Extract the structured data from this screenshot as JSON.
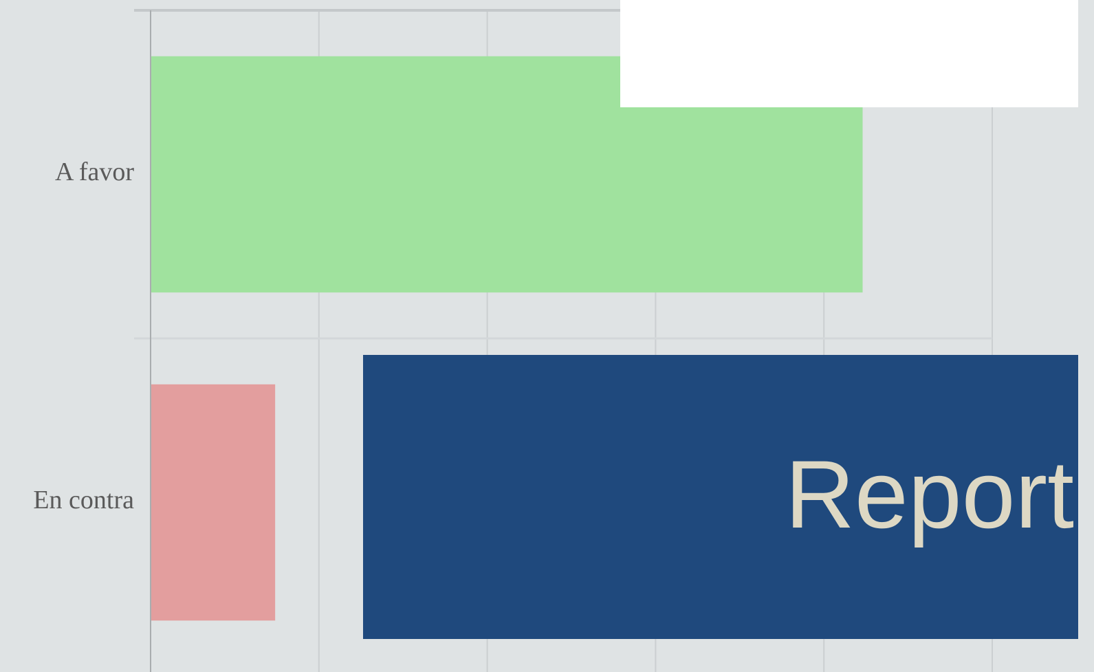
{
  "chart_data": {
    "type": "bar",
    "orientation": "horizontal",
    "categories": [
      "A favor",
      "En contra"
    ],
    "values": [
      4.23,
      0.74
    ],
    "colors": [
      "#a0e29e",
      "#e39e9e"
    ],
    "xlim": [
      0,
      5
    ],
    "xticks": [
      0,
      1,
      2,
      3,
      4,
      5
    ],
    "grid": true
  },
  "banner": {
    "text": "Report"
  }
}
